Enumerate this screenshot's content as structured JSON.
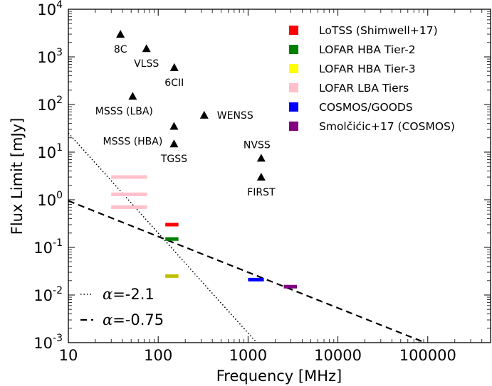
{
  "chart_data": {
    "type": "scatter",
    "xlabel": "Frequency [MHz]",
    "ylabel": "Flux Limit [mJy]",
    "xscale": "log",
    "yscale": "log",
    "xlim": [
      10,
      500000
    ],
    "ylim": [
      0.001,
      10000
    ],
    "x_ticks": [
      {
        "value": 10,
        "label": "10"
      },
      {
        "value": 100,
        "label": "100"
      },
      {
        "value": 1000,
        "label": "1000"
      },
      {
        "value": 10000,
        "label": "10000"
      },
      {
        "value": 100000,
        "label": "100000"
      }
    ],
    "y_ticks": [
      {
        "value": 0.001,
        "base": "10",
        "exp": "-3"
      },
      {
        "value": 0.01,
        "base": "10",
        "exp": "-2"
      },
      {
        "value": 0.1,
        "base": "10",
        "exp": "-1"
      },
      {
        "value": 1,
        "base": "10",
        "exp": "0"
      },
      {
        "value": 10,
        "base": "10",
        "exp": "1"
      },
      {
        "value": 100,
        "base": "10",
        "exp": "2"
      },
      {
        "value": 1000,
        "base": "10",
        "exp": "3"
      },
      {
        "value": 10000,
        "base": "10",
        "exp": "4"
      }
    ],
    "surveys": [
      {
        "name": "8C",
        "x": 38,
        "y": 3000
      },
      {
        "name": "VLSS",
        "x": 74,
        "y": 1500
      },
      {
        "name": "6CII",
        "x": 151,
        "y": 600
      },
      {
        "name": "MSSS (LBA)",
        "x": 52,
        "y": 150
      },
      {
        "name": "WENSS",
        "x": 325,
        "y": 60
      },
      {
        "name": "MSSS (HBA)",
        "x": 150,
        "y": 35
      },
      {
        "name": "TGSS",
        "x": 150,
        "y": 15
      },
      {
        "name": "NVSS",
        "x": 1400,
        "y": 7.5
      },
      {
        "name": "FIRST",
        "x": 1400,
        "y": 3
      }
    ],
    "marker_color": "#000000",
    "legend": [
      {
        "label": "LoTSS (Shimwell+17)",
        "color": "#ff0000"
      },
      {
        "label": "LOFAR HBA Tier-2",
        "color": "#008000"
      },
      {
        "label": "LOFAR HBA Tier-3",
        "color": "#ffff00"
      },
      {
        "label": "LOFAR LBA Tiers",
        "color": "#ffc0cb"
      },
      {
        "label": "COSMOS/GOODS",
        "color": "#0000ff"
      },
      {
        "label": "Smolčićic+17 (COSMOS)",
        "color": "#800080"
      }
    ],
    "legend_position": "top-right",
    "bands": [
      {
        "x": [
          120,
          168
        ],
        "y": 0.3,
        "color": "#ff0000"
      },
      {
        "x": [
          120,
          168
        ],
        "y": 0.15,
        "color": "#008000"
      },
      {
        "x": [
          120,
          168
        ],
        "y": 0.025,
        "color": "#bfbf00"
      },
      {
        "x": [
          30,
          75
        ],
        "y": 3,
        "color": "#ffc0cb"
      },
      {
        "x": [
          30,
          75
        ],
        "y": 1.3,
        "color": "#ffc0cb"
      },
      {
        "x": [
          30,
          75
        ],
        "y": 0.7,
        "color": "#ffc0cb"
      },
      {
        "x": [
          1000,
          1500
        ],
        "y": 0.021,
        "color": "#0000ff"
      },
      {
        "x": [
          2500,
          3500
        ],
        "y": 0.015,
        "color": "#800080"
      }
    ],
    "lines": [
      {
        "alpha": -2.1,
        "ref_x": 100,
        "ref_y": 0.2,
        "style": "dotted",
        "label_symbol": "α",
        "label_value": "=-2.1"
      },
      {
        "alpha": -0.75,
        "ref_x": 10,
        "ref_y": 0.95,
        "style": "dashed",
        "label_symbol": "α",
        "label_value": "=-0.75"
      }
    ],
    "grid": false
  }
}
